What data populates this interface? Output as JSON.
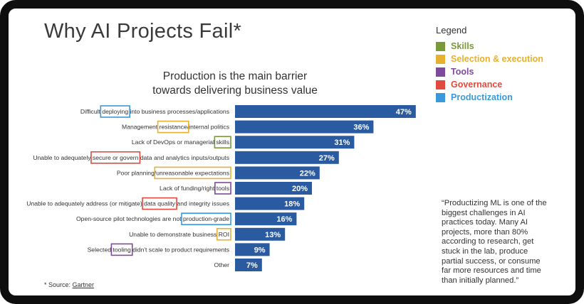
{
  "page": {
    "title": "Why AI Projects Fail*",
    "source_prefix": "* Source: ",
    "source_link": "Gartner",
    "quote": "“Productizing ML is one of the biggest challenges in AI practices today. Many AI projects, more than 80% according to research, get stuck in the lab, produce partial success, or consume far more resources and time than initially planned.”"
  },
  "legend": {
    "title": "Legend",
    "items": [
      {
        "label": "Skills",
        "color": "#7a9a3a"
      },
      {
        "label": "Selection & execution",
        "color": "#e8b030"
      },
      {
        "label": "Tools",
        "color": "#7e4a9c"
      },
      {
        "label": "Governance",
        "color": "#e04a3f"
      },
      {
        "label": "Productization",
        "color": "#3a9ad9"
      }
    ]
  },
  "chart_data": {
    "type": "bar",
    "orientation": "horizontal",
    "title": "Production is the main barrier towards delivering business value",
    "title_lines": [
      "Production is the main barrier",
      "towards delivering business value"
    ],
    "bar_color": "#2a5aa0",
    "grid": false,
    "xlim": [
      0,
      50
    ],
    "categories": [
      "Difficult deploying into business processes/applications",
      "Management resistance/internal politics",
      "Lack of DevOps or managerial skills",
      "Unable to adequately secure or govern data and analytics inputs/outputs",
      "Poor planning/unreasonable expectations",
      "Lack of funding/right tools",
      "Unable to adequately address (or mitigate) data quality and integrity issues",
      "Open-source pilot technologies are not production-grade",
      "Unable to demonstrate business ROI",
      "Selected tooling didn't scale to product requirements",
      "Other"
    ],
    "category_segments": [
      [
        {
          "t": "Difficult "
        },
        {
          "t": "deploying",
          "box": "#3a9ad9"
        },
        {
          "t": " into business processes/applications"
        }
      ],
      [
        {
          "t": "Management "
        },
        {
          "t": "resistance",
          "box": "#e8b030"
        },
        {
          "t": "/internal politics"
        }
      ],
      [
        {
          "t": "Lack of DevOps or managerial "
        },
        {
          "t": "skills",
          "box": "#7a9a3a"
        }
      ],
      [
        {
          "t": "Unable to adequately "
        },
        {
          "t": "secure or govern",
          "box": "#e04a3f"
        },
        {
          "t": " data and analytics inputs/outputs"
        }
      ],
      [
        {
          "t": "Poor planning/"
        },
        {
          "t": "unreasonable expectations",
          "box": "#e8b030"
        }
      ],
      [
        {
          "t": "Lack of funding/right "
        },
        {
          "t": "tools",
          "box": "#7e4a9c"
        }
      ],
      [
        {
          "t": "Unable to adequately address (or mitigate) "
        },
        {
          "t": "data quality",
          "box": "#e04a3f"
        },
        {
          "t": " and integrity issues"
        }
      ],
      [
        {
          "t": "Open-source pilot technologies are not "
        },
        {
          "t": "production-grade",
          "box": "#3a9ad9"
        }
      ],
      [
        {
          "t": "Unable to demonstrate business "
        },
        {
          "t": "ROI",
          "box": "#e8b030"
        }
      ],
      [
        {
          "t": "Selected "
        },
        {
          "t": "tooling",
          "box": "#7e4a9c"
        },
        {
          "t": " didn't scale to product requirements"
        }
      ],
      [
        {
          "t": "Other"
        }
      ]
    ],
    "values": [
      47,
      36,
      31,
      27,
      22,
      20,
      18,
      16,
      13,
      9,
      7
    ],
    "value_labels": [
      "47%",
      "36%",
      "31%",
      "27%",
      "22%",
      "20%",
      "18%",
      "16%",
      "13%",
      "9%",
      "7%"
    ]
  }
}
